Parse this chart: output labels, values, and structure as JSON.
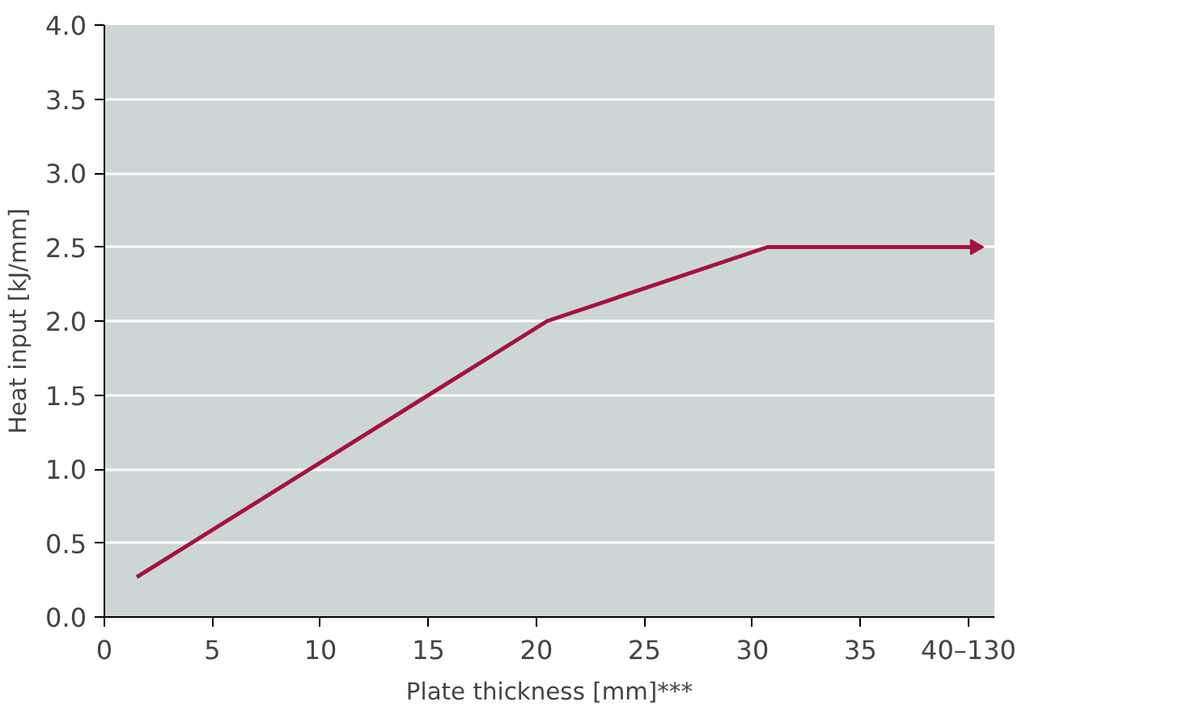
{
  "chart_data": {
    "type": "line",
    "xlabel": "Plate thickness [mm]***",
    "ylabel": "Heat input [kJ/mm]",
    "x": [
      1.5,
      20.5,
      30.7,
      40.3
    ],
    "series": [
      {
        "color": "#a5123f",
        "values": [
          0.27,
          2.0,
          2.5,
          2.5
        ]
      }
    ],
    "xlim": [
      0,
      41.2
    ],
    "ylim": [
      0,
      4
    ],
    "xticks": [
      0,
      5,
      10,
      15,
      20,
      25,
      30,
      35,
      {
        "value": 40,
        "label": "40–130"
      }
    ],
    "yticks": [
      {
        "value": 0,
        "label": "0.0"
      },
      0.5,
      {
        "value": 1,
        "label": "1.0"
      },
      1.5,
      {
        "value": 2,
        "label": "2.0"
      },
      2.5,
      {
        "value": 3,
        "label": "3.0"
      },
      3.5,
      {
        "value": 4,
        "label": "4.0"
      }
    ],
    "grid": "y",
    "marker": "none",
    "line_style": "solid"
  }
}
